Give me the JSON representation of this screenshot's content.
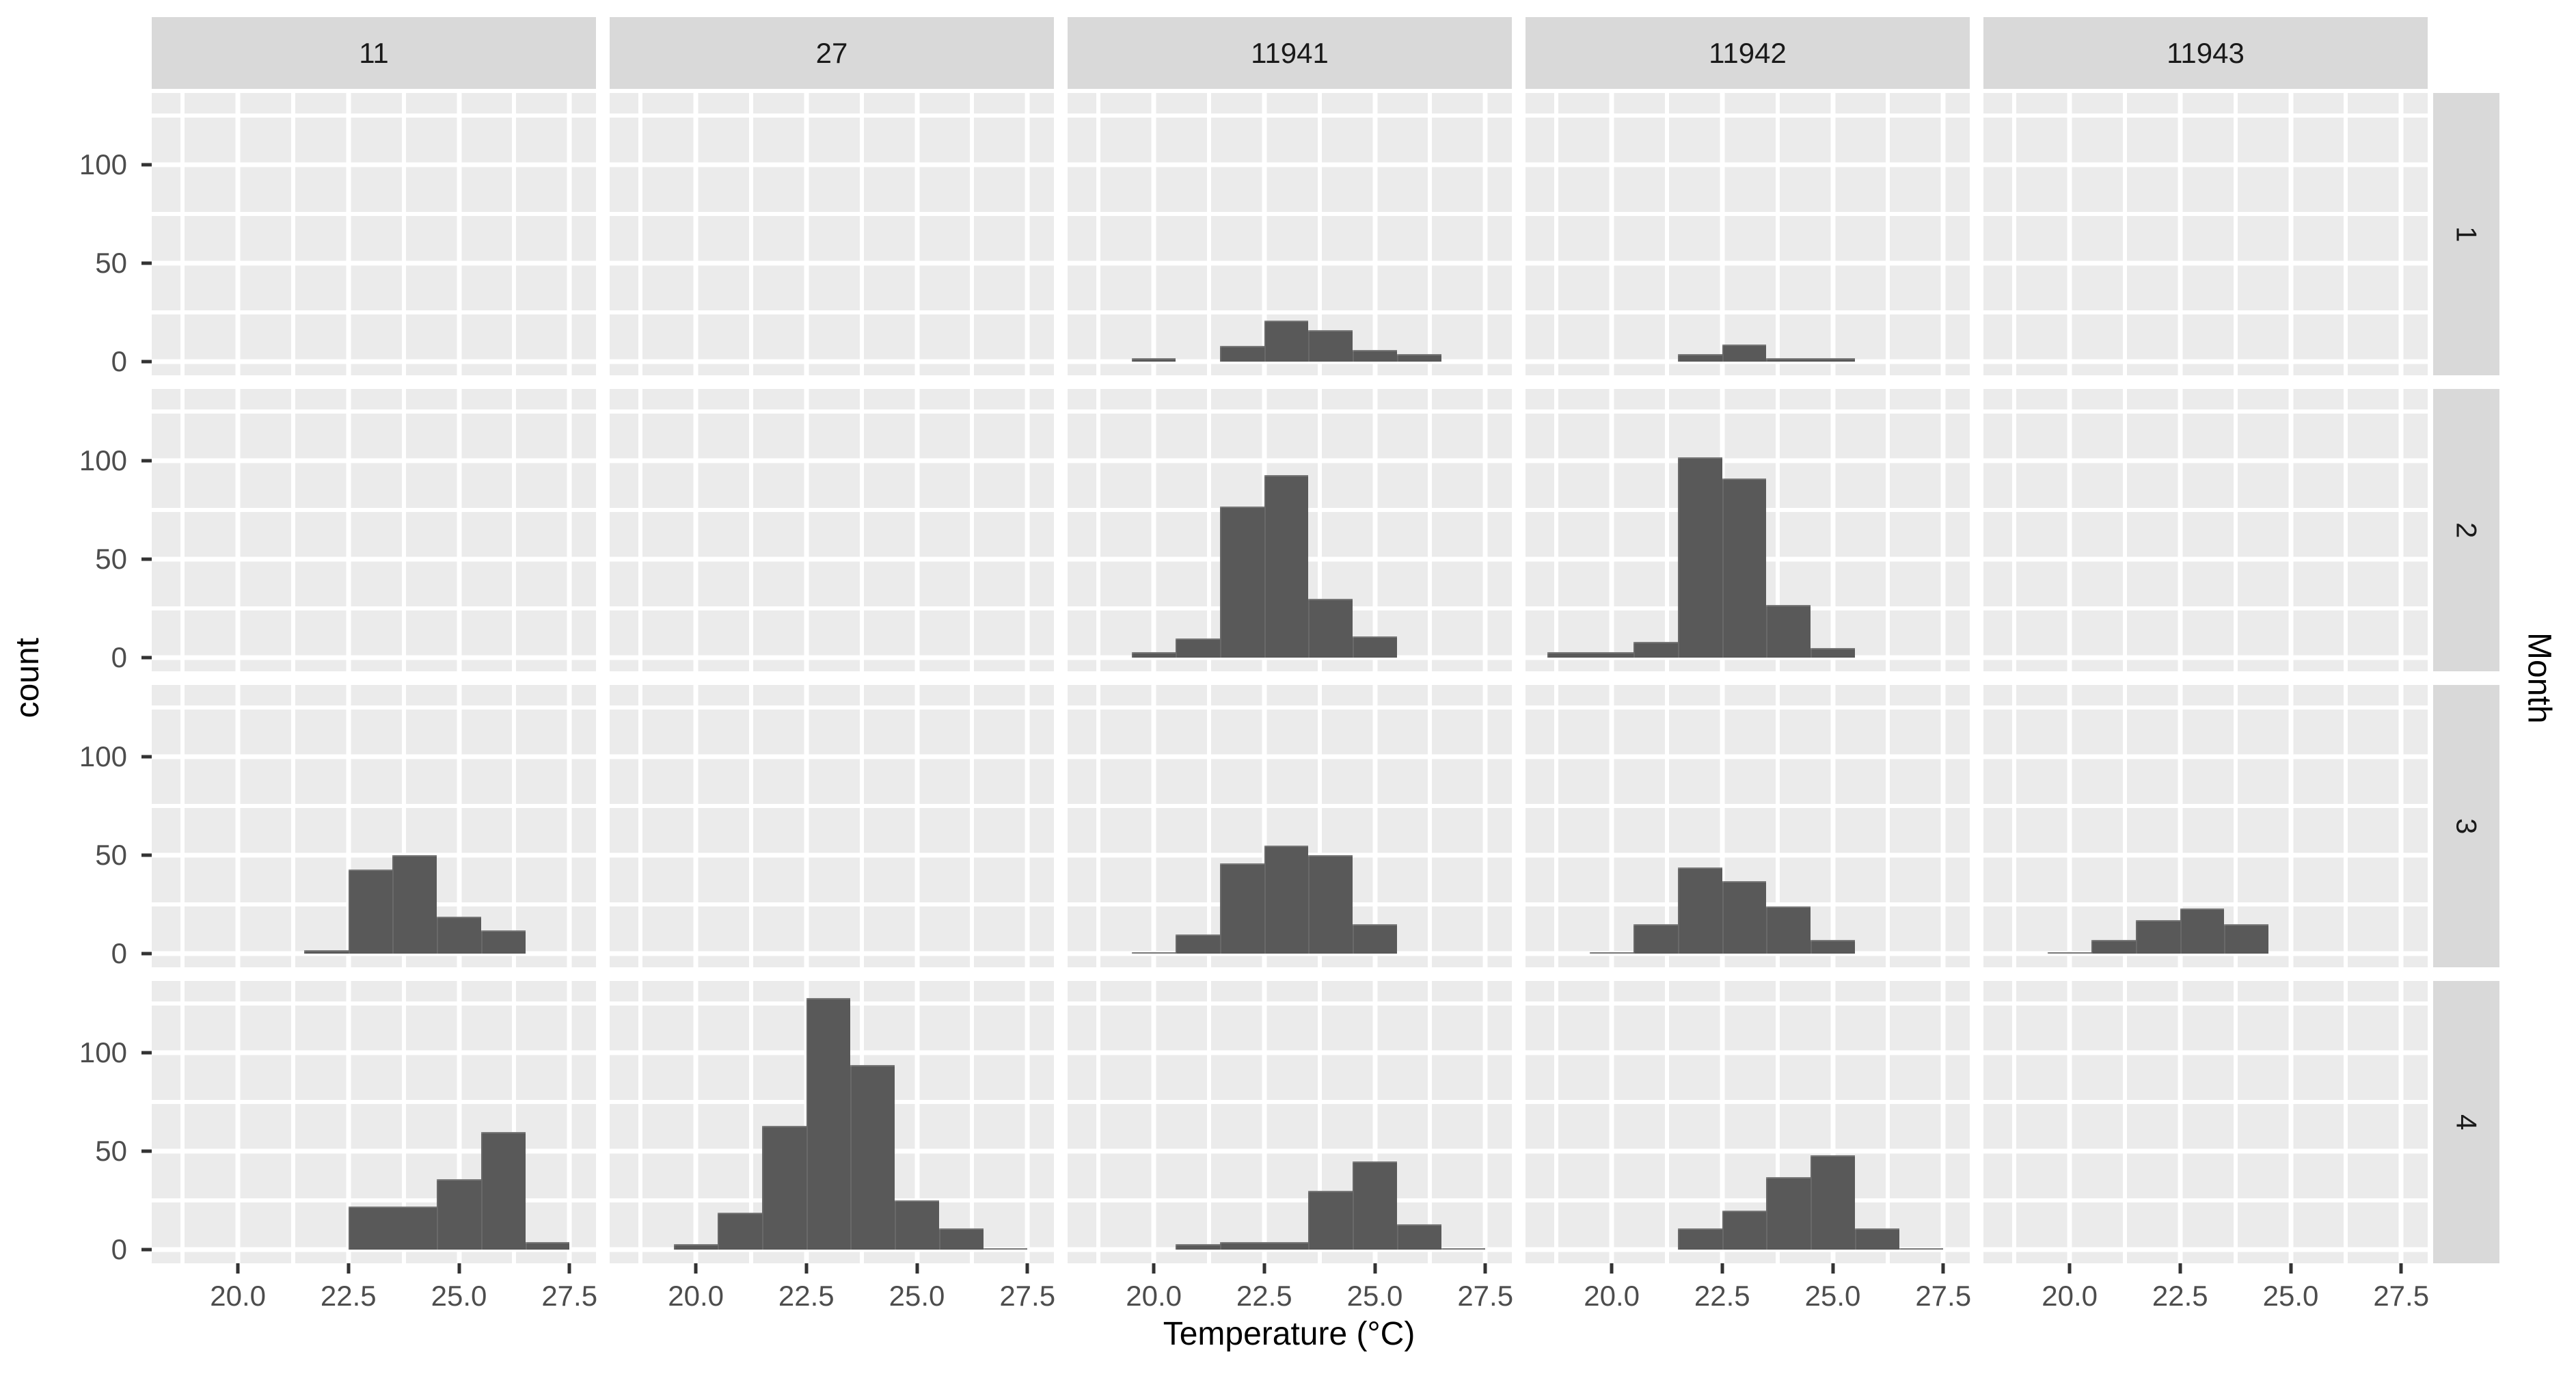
{
  "chart_data": {
    "type": "bar",
    "subtype": "faceted-histogram-grid",
    "title": "",
    "xlabel": "Temperature (°C)",
    "ylabel": "count",
    "facet_row_label": "Month",
    "facet_cols": [
      "11",
      "27",
      "11941",
      "11942",
      "11943"
    ],
    "facet_rows": [
      "1",
      "2",
      "3",
      "4"
    ],
    "x_range": [
      18.05,
      28.1
    ],
    "y_range": [
      -6.8,
      136.6
    ],
    "x_major_ticks": [
      20.0,
      22.5,
      25.0,
      27.5
    ],
    "x_tick_labels": [
      "20.0",
      "22.5",
      "25.0",
      "27.5"
    ],
    "x_minor_gridlines": [
      18.75,
      21.25,
      23.75,
      26.25
    ],
    "y_major_gridlines": [
      0,
      50,
      100
    ],
    "y_minor_gridlines": [
      25,
      75,
      125
    ],
    "y_tick_labels": [
      "0",
      "50",
      "100"
    ],
    "y_tick_values": [
      0,
      50,
      100
    ],
    "grid": "on",
    "legend_position": "none",
    "bin_width_degC": 1,
    "panels": [
      {
        "row": "1",
        "col": "11941",
        "bars": [
          {
            "x0": 19.5,
            "x1": 20.5,
            "count": 2
          },
          {
            "x0": 21.5,
            "x1": 22.5,
            "count": 8
          },
          {
            "x0": 22.5,
            "x1": 23.5,
            "count": 21
          },
          {
            "x0": 23.5,
            "x1": 24.5,
            "count": 16
          },
          {
            "x0": 24.5,
            "x1": 25.5,
            "count": 6
          },
          {
            "x0": 25.5,
            "x1": 26.5,
            "count": 4
          }
        ]
      },
      {
        "row": "1",
        "col": "11942",
        "bars": [
          {
            "x0": 21.5,
            "x1": 22.5,
            "count": 4
          },
          {
            "x0": 22.5,
            "x1": 23.5,
            "count": 9
          },
          {
            "x0": 23.5,
            "x1": 25.5,
            "count": 2
          }
        ]
      },
      {
        "row": "2",
        "col": "11941",
        "bars": [
          {
            "x0": 19.5,
            "x1": 20.5,
            "count": 3
          },
          {
            "x0": 20.5,
            "x1": 21.5,
            "count": 10
          },
          {
            "x0": 21.5,
            "x1": 22.5,
            "count": 77
          },
          {
            "x0": 22.5,
            "x1": 23.5,
            "count": 93
          },
          {
            "x0": 23.5,
            "x1": 24.5,
            "count": 30
          },
          {
            "x0": 24.5,
            "x1": 25.5,
            "count": 11
          }
        ]
      },
      {
        "row": "2",
        "col": "11942",
        "bars": [
          {
            "x0": 18.55,
            "x1": 20.5,
            "count": 3
          },
          {
            "x0": 20.5,
            "x1": 21.5,
            "count": 8
          },
          {
            "x0": 21.5,
            "x1": 22.5,
            "count": 102
          },
          {
            "x0": 22.5,
            "x1": 23.5,
            "count": 91
          },
          {
            "x0": 23.5,
            "x1": 24.5,
            "count": 27
          },
          {
            "x0": 24.5,
            "x1": 25.5,
            "count": 5
          }
        ]
      },
      {
        "row": "3",
        "col": "11",
        "bars": [
          {
            "x0": 21.5,
            "x1": 22.5,
            "count": 2
          },
          {
            "x0": 22.5,
            "x1": 23.5,
            "count": 43
          },
          {
            "x0": 23.5,
            "x1": 24.5,
            "count": 50
          },
          {
            "x0": 24.5,
            "x1": 25.5,
            "count": 19
          },
          {
            "x0": 25.5,
            "x1": 26.5,
            "count": 12
          }
        ]
      },
      {
        "row": "3",
        "col": "11941",
        "bars": [
          {
            "x0": 19.5,
            "x1": 20.5,
            "count": 1
          },
          {
            "x0": 20.5,
            "x1": 21.5,
            "count": 10
          },
          {
            "x0": 21.5,
            "x1": 22.5,
            "count": 46
          },
          {
            "x0": 22.5,
            "x1": 23.5,
            "count": 55
          },
          {
            "x0": 23.5,
            "x1": 24.5,
            "count": 50
          },
          {
            "x0": 24.5,
            "x1": 25.5,
            "count": 15
          }
        ]
      },
      {
        "row": "3",
        "col": "11942",
        "bars": [
          {
            "x0": 19.5,
            "x1": 20.5,
            "count": 1
          },
          {
            "x0": 20.5,
            "x1": 21.5,
            "count": 15
          },
          {
            "x0": 21.5,
            "x1": 22.5,
            "count": 44
          },
          {
            "x0": 22.5,
            "x1": 23.5,
            "count": 37
          },
          {
            "x0": 23.5,
            "x1": 24.5,
            "count": 24
          },
          {
            "x0": 24.5,
            "x1": 25.5,
            "count": 7
          }
        ]
      },
      {
        "row": "3",
        "col": "11943",
        "bars": [
          {
            "x0": 19.5,
            "x1": 20.5,
            "count": 1
          },
          {
            "x0": 20.5,
            "x1": 21.5,
            "count": 7
          },
          {
            "x0": 21.5,
            "x1": 22.5,
            "count": 17
          },
          {
            "x0": 22.5,
            "x1": 23.5,
            "count": 23
          },
          {
            "x0": 23.5,
            "x1": 24.5,
            "count": 15
          }
        ]
      },
      {
        "row": "4",
        "col": "11",
        "bars": [
          {
            "x0": 22.5,
            "x1": 24.5,
            "count": 22
          },
          {
            "x0": 24.5,
            "x1": 25.5,
            "count": 36
          },
          {
            "x0": 25.5,
            "x1": 26.5,
            "count": 60
          },
          {
            "x0": 26.5,
            "x1": 27.5,
            "count": 4
          }
        ]
      },
      {
        "row": "4",
        "col": "27",
        "bars": [
          {
            "x0": 19.5,
            "x1": 20.5,
            "count": 3
          },
          {
            "x0": 20.5,
            "x1": 21.5,
            "count": 19
          },
          {
            "x0": 21.5,
            "x1": 22.5,
            "count": 63
          },
          {
            "x0": 22.5,
            "x1": 23.5,
            "count": 128
          },
          {
            "x0": 23.5,
            "x1": 24.5,
            "count": 94
          },
          {
            "x0": 24.5,
            "x1": 25.5,
            "count": 25
          },
          {
            "x0": 25.5,
            "x1": 26.5,
            "count": 11
          },
          {
            "x0": 26.5,
            "x1": 27.5,
            "count": 1
          }
        ]
      },
      {
        "row": "4",
        "col": "11941",
        "bars": [
          {
            "x0": 20.5,
            "x1": 21.5,
            "count": 3
          },
          {
            "x0": 21.5,
            "x1": 23.5,
            "count": 4
          },
          {
            "x0": 23.5,
            "x1": 24.5,
            "count": 30
          },
          {
            "x0": 24.5,
            "x1": 25.5,
            "count": 45
          },
          {
            "x0": 25.5,
            "x1": 26.5,
            "count": 13
          },
          {
            "x0": 26.5,
            "x1": 27.5,
            "count": 1
          }
        ]
      },
      {
        "row": "4",
        "col": "11942",
        "bars": [
          {
            "x0": 21.5,
            "x1": 22.5,
            "count": 11
          },
          {
            "x0": 22.5,
            "x1": 23.5,
            "count": 20
          },
          {
            "x0": 23.5,
            "x1": 24.5,
            "count": 37
          },
          {
            "x0": 24.5,
            "x1": 25.5,
            "count": 48
          },
          {
            "x0": 25.5,
            "x1": 26.5,
            "count": 11
          },
          {
            "x0": 26.5,
            "x1": 27.5,
            "count": 1
          }
        ]
      }
    ]
  },
  "colors": {
    "panel_background": "#EBEBEB",
    "strip_background": "#D9D9D9",
    "bar_fill": "#595959",
    "gridline": "#FFFFFF",
    "tick_label_text": "#4D4D4D",
    "strip_text": "#1A1A1A",
    "axis_title_text": "#000000",
    "tick_mark": "#333333",
    "page_background": "#FFFFFF"
  }
}
